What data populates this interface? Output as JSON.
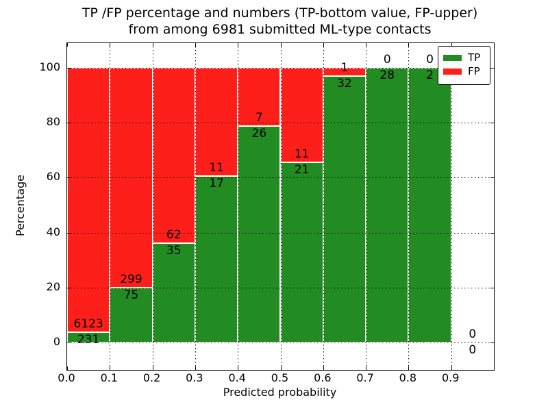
{
  "title": {
    "line1": "TP /FP percentage and numbers (TP-bottom value, FP-upper)",
    "line2": "from among 6981 submitted ML-type contacts"
  },
  "x_axis": {
    "label": "Predicted probability",
    "tick_labels": [
      "0.0",
      "0.1",
      "0.2",
      "0.3",
      "0.4",
      "0.5",
      "0.6",
      "0.7",
      "0.8",
      "0.9"
    ]
  },
  "y_axis": {
    "label": "Percentage",
    "tick_labels": [
      "0",
      "20",
      "40",
      "60",
      "80",
      "100"
    ]
  },
  "legend": {
    "items": [
      {
        "label": "TP",
        "color": "#228b22"
      },
      {
        "label": "FP",
        "color": "#ff1f1a"
      }
    ]
  },
  "colors": {
    "tp": "#228b22",
    "fp": "#ff1f1a",
    "grid": "#000000",
    "frame": "#000000",
    "background": "#ffffff"
  },
  "chart_data": {
    "type": "bar",
    "stacked": true,
    "normalized_to_percent": true,
    "title": "TP /FP percentage and numbers (TP-bottom value, FP-upper) from among 6981 submitted ML-type contacts",
    "xlabel": "Predicted probability",
    "ylabel": "Percentage",
    "total_contacts": 6981,
    "xlim": [
      0.0,
      1.0
    ],
    "ylim": [
      -10,
      109
    ],
    "x_ticks": [
      0.0,
      0.1,
      0.2,
      0.3,
      0.4,
      0.5,
      0.6,
      0.7,
      0.8,
      0.9
    ],
    "y_ticks": [
      0,
      20,
      40,
      60,
      80,
      100
    ],
    "grid": "dotted",
    "legend_position": "upper right",
    "bin_width": 0.1,
    "series_names": [
      "TP",
      "FP"
    ],
    "bins": [
      {
        "x_start": 0.0,
        "x_end": 0.1,
        "tp": 231,
        "fp": 6123,
        "tp_percent": 3.64
      },
      {
        "x_start": 0.1,
        "x_end": 0.2,
        "tp": 75,
        "fp": 299,
        "tp_percent": 20.05
      },
      {
        "x_start": 0.2,
        "x_end": 0.3,
        "tp": 35,
        "fp": 62,
        "tp_percent": 36.08
      },
      {
        "x_start": 0.3,
        "x_end": 0.4,
        "tp": 17,
        "fp": 11,
        "tp_percent": 60.71
      },
      {
        "x_start": 0.4,
        "x_end": 0.5,
        "tp": 26,
        "fp": 7,
        "tp_percent": 78.79
      },
      {
        "x_start": 0.5,
        "x_end": 0.6,
        "tp": 21,
        "fp": 11,
        "tp_percent": 65.63
      },
      {
        "x_start": 0.6,
        "x_end": 0.7,
        "tp": 32,
        "fp": 1,
        "tp_percent": 96.97
      },
      {
        "x_start": 0.7,
        "x_end": 0.8,
        "tp": 28,
        "fp": 0,
        "tp_percent": 100
      },
      {
        "x_start": 0.8,
        "x_end": 0.9,
        "tp": 2,
        "fp": 0,
        "tp_percent": 100
      },
      {
        "x_start": 0.9,
        "x_end": 1.0,
        "tp": 0,
        "fp": 0,
        "tp_percent": 0
      }
    ]
  }
}
